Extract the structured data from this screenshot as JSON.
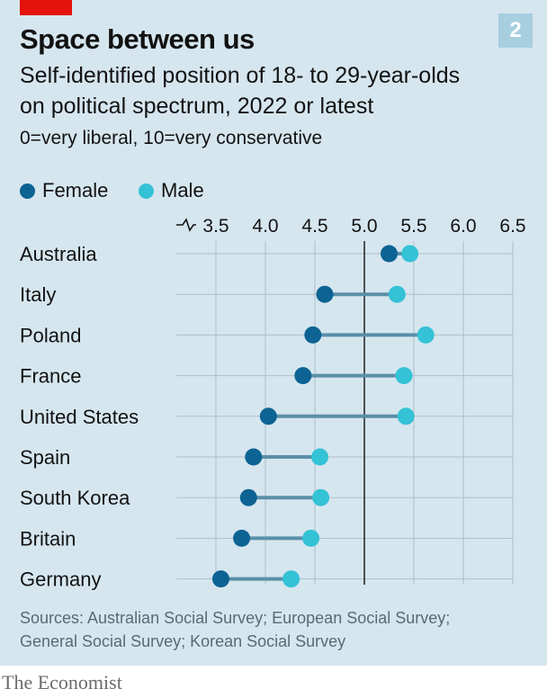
{
  "header": {
    "badge": "2",
    "title": "Space between us",
    "subtitle_line1": "Self-identified position of 18- to 29-year-olds",
    "subtitle_line2": "on political spectrum, 2022 or latest",
    "note": "0=very liberal, 10=very conservative"
  },
  "colors": {
    "female": "#0d6393",
    "male": "#34c2d6",
    "connector": "#5a8fa8",
    "accent_red": "#e3120b",
    "background": "#d6e6ef"
  },
  "chart_data": {
    "type": "dot-range",
    "x_tick_labels": [
      "3.5",
      "4.0",
      "4.5",
      "5.0",
      "5.5",
      "6.0",
      "6.5"
    ],
    "x_ticks": [
      3.5,
      4.0,
      4.5,
      5.0,
      5.5,
      6.0,
      6.5
    ],
    "xlim": [
      3.5,
      6.5
    ],
    "axis_break": true,
    "reference_line": 5.0,
    "legend_placement": "top-left",
    "series": [
      {
        "name": "Female",
        "values": [
          5.25,
          4.6,
          4.48,
          4.38,
          4.03,
          3.88,
          3.83,
          3.76,
          3.55
        ]
      },
      {
        "name": "Male",
        "values": [
          5.46,
          5.33,
          5.62,
          5.4,
          5.42,
          4.55,
          4.56,
          4.46,
          4.26
        ]
      }
    ],
    "categories": [
      "Australia",
      "Italy",
      "Poland",
      "France",
      "United States",
      "Spain",
      "South Korea",
      "Britain",
      "Germany"
    ]
  },
  "footer": {
    "sources_line1": "Sources: Australian Social Survey; European Social Survey;",
    "sources_line2": "General Social Survey; Korean Social Survey",
    "brand": "The Economist"
  }
}
